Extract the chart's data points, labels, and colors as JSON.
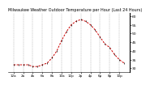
{
  "title": "Milwaukee Weather Outdoor Temperature per Hour (Last 24 Hours)",
  "hours": [
    0,
    1,
    2,
    3,
    4,
    5,
    6,
    7,
    8,
    9,
    10,
    11,
    12,
    13,
    14,
    15,
    16,
    17,
    18,
    19,
    20,
    21,
    22,
    23
  ],
  "temps": [
    32,
    32,
    32,
    32,
    31,
    31,
    32,
    33,
    36,
    40,
    46,
    51,
    55,
    57,
    58,
    57,
    55,
    52,
    48,
    44,
    42,
    38,
    35,
    33
  ],
  "line_color": "#cc0000",
  "marker_color": "#000000",
  "bg_color": "#ffffff",
  "grid_color": "#888888",
  "title_color": "#000000",
  "ylim_min": 28,
  "ylim_max": 62,
  "yticks": [
    30,
    35,
    40,
    45,
    50,
    55,
    60
  ],
  "xtick_step": 2,
  "ylabel_fontsize": 3.2,
  "xlabel_fontsize": 3.0,
  "title_fontsize": 3.5,
  "linewidth": 0.7,
  "markersize": 2.0
}
